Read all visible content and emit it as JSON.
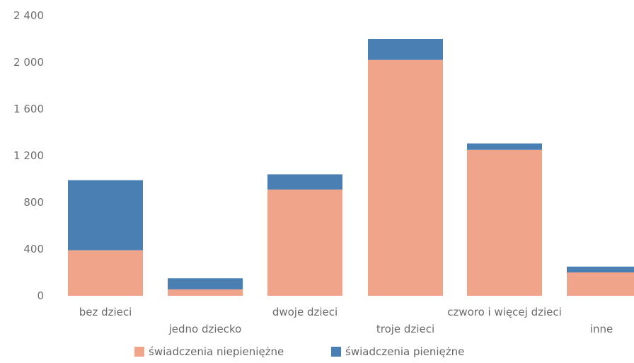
{
  "chart_data": {
    "type": "bar",
    "stacked": true,
    "title": "",
    "xlabel": "",
    "ylabel": "",
    "ylim": [
      0,
      2400
    ],
    "yticks": [
      0,
      400,
      800,
      1200,
      1600,
      2000,
      2400
    ],
    "ytick_labels": [
      "0",
      "400",
      "800",
      "1 200",
      "1 600",
      "2 000",
      "2 400"
    ],
    "grid": false,
    "legend_position": "bottom",
    "categories": [
      "bez dzieci",
      "jedno dziecko",
      "dwoje dzieci",
      "troje dzieci",
      "czworo i więcej dzieci",
      "inne"
    ],
    "series": [
      {
        "name": "świadczenia niepieniężne",
        "color": "#f0a58a",
        "values": [
          390,
          55,
          910,
          2020,
          1250,
          200
        ]
      },
      {
        "name": "świadczenia pieniężne",
        "color": "#4a7fb3",
        "values": [
          600,
          95,
          130,
          180,
          55,
          50
        ]
      }
    ]
  }
}
